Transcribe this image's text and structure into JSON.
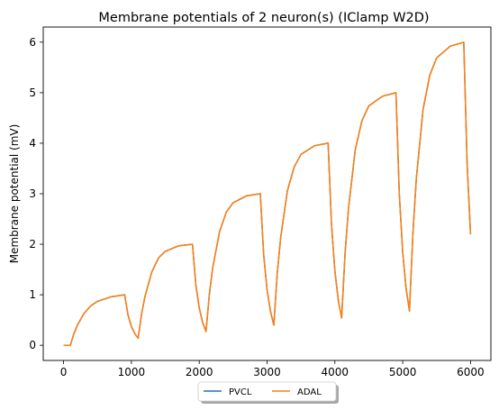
{
  "chart_data": {
    "type": "line",
    "title": "Membrane potentials of 2 neuron(s) (IClamp W2D)",
    "xlabel": "",
    "ylabel": "Membrane potential (mV)",
    "xlim": [
      -300,
      6300
    ],
    "ylim": [
      -0.3,
      6.3
    ],
    "xticks": [
      0,
      1000,
      2000,
      3000,
      4000,
      5000,
      6000
    ],
    "yticks": [
      0,
      1,
      2,
      3,
      4,
      5,
      6
    ],
    "grid": false,
    "legend_position": "bottom-center",
    "x": [
      0,
      100,
      150,
      200,
      300,
      400,
      500,
      700,
      900,
      950,
      1000,
      1050,
      1100,
      1150,
      1200,
      1300,
      1400,
      1500,
      1700,
      1900,
      1950,
      2000,
      2050,
      2100,
      2150,
      2200,
      2300,
      2400,
      2500,
      2700,
      2900,
      2950,
      3000,
      3050,
      3100,
      3150,
      3200,
      3300,
      3400,
      3500,
      3700,
      3900,
      3950,
      4000,
      4050,
      4100,
      4150,
      4200,
      4300,
      4400,
      4500,
      4700,
      4900,
      4950,
      5000,
      5050,
      5100,
      5150,
      5200,
      5300,
      5400,
      5500,
      5700,
      5900,
      5950,
      6000
    ],
    "series": [
      {
        "name": "PVCL",
        "color": "#1f77b4",
        "values": [
          0,
          0,
          0.22,
          0.39,
          0.63,
          0.78,
          0.87,
          0.96,
          1.0,
          0.6,
          0.37,
          0.23,
          0.14,
          0.62,
          0.97,
          1.45,
          1.73,
          1.86,
          1.97,
          2.0,
          1.2,
          0.74,
          0.45,
          0.27,
          1.02,
          1.55,
          2.25,
          2.64,
          2.82,
          2.96,
          3.0,
          1.8,
          1.1,
          0.67,
          0.4,
          1.42,
          2.13,
          3.06,
          3.53,
          3.78,
          3.95,
          4.0,
          2.4,
          1.47,
          0.89,
          0.54,
          1.82,
          2.71,
          3.87,
          4.45,
          4.74,
          4.93,
          5.0,
          3.0,
          1.84,
          1.12,
          0.68,
          2.21,
          3.3,
          4.67,
          5.35,
          5.69,
          5.92,
          6.0,
          3.6,
          2.2
        ]
      },
      {
        "name": "ADAL",
        "color": "#ff7f0e",
        "values": [
          0,
          0,
          0.22,
          0.39,
          0.63,
          0.78,
          0.87,
          0.96,
          1.0,
          0.6,
          0.37,
          0.23,
          0.14,
          0.62,
          0.97,
          1.45,
          1.73,
          1.86,
          1.97,
          2.0,
          1.2,
          0.74,
          0.45,
          0.27,
          1.02,
          1.55,
          2.25,
          2.64,
          2.82,
          2.96,
          3.0,
          1.8,
          1.1,
          0.67,
          0.4,
          1.42,
          2.13,
          3.06,
          3.53,
          3.78,
          3.95,
          4.0,
          2.4,
          1.47,
          0.89,
          0.54,
          1.82,
          2.71,
          3.87,
          4.45,
          4.74,
          4.93,
          5.0,
          3.0,
          1.84,
          1.12,
          0.68,
          2.21,
          3.3,
          4.67,
          5.35,
          5.69,
          5.92,
          6.0,
          3.6,
          2.2
        ]
      }
    ]
  }
}
